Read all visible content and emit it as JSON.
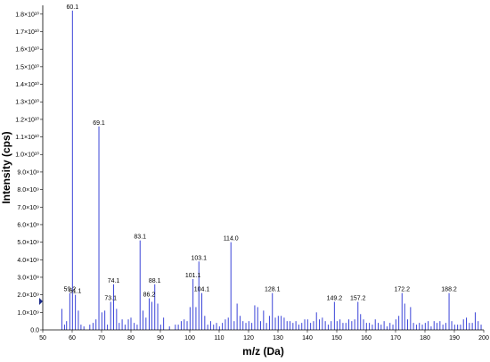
{
  "chart_data": {
    "type": "bar",
    "xlabel": "m/z (Da)",
    "ylabel": "Intensity (cps)",
    "xlim": [
      50,
      200
    ],
    "ylim": [
      0,
      18500000000.0
    ],
    "grid": false,
    "peak_color": "#3a44d8",
    "marker_color": "#1a2a8a",
    "x_ticks": [
      {
        "value": 50,
        "label": "50"
      },
      {
        "value": 60,
        "label": "60"
      },
      {
        "value": 70,
        "label": "70"
      },
      {
        "value": 80,
        "label": "80"
      },
      {
        "value": 90,
        "label": "90"
      },
      {
        "value": 100,
        "label": "100"
      },
      {
        "value": 110,
        "label": "110"
      },
      {
        "value": 120,
        "label": "120"
      },
      {
        "value": 130,
        "label": "130"
      },
      {
        "value": 140,
        "label": "140"
      },
      {
        "value": 150,
        "label": "150"
      },
      {
        "value": 160,
        "label": "160"
      },
      {
        "value": 170,
        "label": "170"
      },
      {
        "value": 180,
        "label": "180"
      },
      {
        "value": 190,
        "label": "190"
      },
      {
        "value": 200,
        "label": "200"
      }
    ],
    "y_ticks": [
      {
        "value": 0,
        "label": "0.0"
      },
      {
        "value": 1000000000.0,
        "label": "1.0×10⁹"
      },
      {
        "value": 2000000000.0,
        "label": "2.0×10⁹"
      },
      {
        "value": 3000000000.0,
        "label": "3.0×10⁹"
      },
      {
        "value": 4000000000.0,
        "label": "4.0×10⁹"
      },
      {
        "value": 5000000000.0,
        "label": "5.0×10⁹"
      },
      {
        "value": 6000000000.0,
        "label": "6.0×10⁹"
      },
      {
        "value": 7000000000.0,
        "label": "7.0×10⁹"
      },
      {
        "value": 8000000000.0,
        "label": "8.0×10⁹"
      },
      {
        "value": 9000000000.0,
        "label": "9.0×10⁹"
      },
      {
        "value": 10000000000.0,
        "label": "1.0×10¹⁰"
      },
      {
        "value": 11000000000.0,
        "label": "1.1×10¹⁰"
      },
      {
        "value": 12000000000.0,
        "label": "1.2×10¹⁰"
      },
      {
        "value": 13000000000.0,
        "label": "1.3×10¹⁰"
      },
      {
        "value": 14000000000.0,
        "label": "1.4×10¹⁰"
      },
      {
        "value": 15000000000.0,
        "label": "1.5×10¹⁰"
      },
      {
        "value": 16000000000.0,
        "label": "1.6×10¹⁰"
      },
      {
        "value": 17000000000.0,
        "label": "1.7×10¹⁰"
      },
      {
        "value": 18000000000.0,
        "label": "1.8×10¹⁰"
      }
    ],
    "labeled_peaks": [
      {
        "mz": 59.2,
        "intensity": 2100000000.0,
        "label": "59.2"
      },
      {
        "mz": 60.1,
        "intensity": 18200000000.0,
        "label": "60.1"
      },
      {
        "mz": 61.1,
        "intensity": 2000000000.0,
        "label": "61.1"
      },
      {
        "mz": 69.1,
        "intensity": 11600000000.0,
        "label": "69.1"
      },
      {
        "mz": 73.1,
        "intensity": 1600000000.0,
        "label": "73.1"
      },
      {
        "mz": 74.1,
        "intensity": 2600000000.0,
        "label": "74.1"
      },
      {
        "mz": 83.1,
        "intensity": 5100000000.0,
        "label": "83.1"
      },
      {
        "mz": 86.2,
        "intensity": 1800000000.0,
        "label": "86.2"
      },
      {
        "mz": 88.1,
        "intensity": 2600000000.0,
        "label": "88.1"
      },
      {
        "mz": 101.1,
        "intensity": 2900000000.0,
        "label": "101.1"
      },
      {
        "mz": 103.1,
        "intensity": 3900000000.0,
        "label": "103.1"
      },
      {
        "mz": 104.1,
        "intensity": 2100000000.0,
        "label": "104.1"
      },
      {
        "mz": 114.0,
        "intensity": 5000000000.0,
        "label": "114.0"
      },
      {
        "mz": 128.1,
        "intensity": 2100000000.0,
        "label": "128.1"
      },
      {
        "mz": 149.2,
        "intensity": 1600000000.0,
        "label": "149.2"
      },
      {
        "mz": 157.2,
        "intensity": 1600000000.0,
        "label": "157.2"
      },
      {
        "mz": 172.2,
        "intensity": 2100000000.0,
        "label": "172.2"
      },
      {
        "mz": 188.2,
        "intensity": 2100000000.0,
        "label": "188.2"
      }
    ],
    "minor_peaks": [
      {
        "mz": 56.5,
        "intensity": 1200000000.0
      },
      {
        "mz": 57.4,
        "intensity": 300000000.0
      },
      {
        "mz": 58.1,
        "intensity": 500000000.0
      },
      {
        "mz": 62.1,
        "intensity": 1100000000.0
      },
      {
        "mz": 63.0,
        "intensity": 300000000.0
      },
      {
        "mz": 64.0,
        "intensity": 200000000.0
      },
      {
        "mz": 66.0,
        "intensity": 300000000.0
      },
      {
        "mz": 67.1,
        "intensity": 400000000.0
      },
      {
        "mz": 68.1,
        "intensity": 600000000.0
      },
      {
        "mz": 70.1,
        "intensity": 1000000000.0
      },
      {
        "mz": 71.1,
        "intensity": 1100000000.0
      },
      {
        "mz": 72.0,
        "intensity": 300000000.0
      },
      {
        "mz": 75.1,
        "intensity": 1200000000.0
      },
      {
        "mz": 76.0,
        "intensity": 400000000.0
      },
      {
        "mz": 77.0,
        "intensity": 600000000.0
      },
      {
        "mz": 78.0,
        "intensity": 300000000.0
      },
      {
        "mz": 79.1,
        "intensity": 600000000.0
      },
      {
        "mz": 80.0,
        "intensity": 700000000.0
      },
      {
        "mz": 81.1,
        "intensity": 400000000.0
      },
      {
        "mz": 82.1,
        "intensity": 300000000.0
      },
      {
        "mz": 84.1,
        "intensity": 1100000000.0
      },
      {
        "mz": 85.1,
        "intensity": 700000000.0
      },
      {
        "mz": 87.1,
        "intensity": 1600000000.0
      },
      {
        "mz": 89.1,
        "intensity": 1500000000.0
      },
      {
        "mz": 90.1,
        "intensity": 300000000.0
      },
      {
        "mz": 91.1,
        "intensity": 700000000.0
      },
      {
        "mz": 93.1,
        "intensity": 200000000.0
      },
      {
        "mz": 95.1,
        "intensity": 300000000.0
      },
      {
        "mz": 96.1,
        "intensity": 300000000.0
      },
      {
        "mz": 97.1,
        "intensity": 500000000.0
      },
      {
        "mz": 98.1,
        "intensity": 600000000.0
      },
      {
        "mz": 99.1,
        "intensity": 500000000.0
      },
      {
        "mz": 100.1,
        "intensity": 1300000000.0
      },
      {
        "mz": 102.1,
        "intensity": 1300000000.0
      },
      {
        "mz": 105.1,
        "intensity": 800000000.0
      },
      {
        "mz": 106.1,
        "intensity": 300000000.0
      },
      {
        "mz": 107.1,
        "intensity": 500000000.0
      },
      {
        "mz": 108.1,
        "intensity": 300000000.0
      },
      {
        "mz": 109.1,
        "intensity": 400000000.0
      },
      {
        "mz": 110.1,
        "intensity": 200000000.0
      },
      {
        "mz": 111.1,
        "intensity": 400000000.0
      },
      {
        "mz": 112.1,
        "intensity": 600000000.0
      },
      {
        "mz": 113.1,
        "intensity": 700000000.0
      },
      {
        "mz": 115.1,
        "intensity": 500000000.0
      },
      {
        "mz": 116.1,
        "intensity": 1500000000.0
      },
      {
        "mz": 117.1,
        "intensity": 800000000.0
      },
      {
        "mz": 118.1,
        "intensity": 500000000.0
      },
      {
        "mz": 119.1,
        "intensity": 400000000.0
      },
      {
        "mz": 120.1,
        "intensity": 500000000.0
      },
      {
        "mz": 121.1,
        "intensity": 400000000.0
      },
      {
        "mz": 122.1,
        "intensity": 1400000000.0
      },
      {
        "mz": 123.1,
        "intensity": 1300000000.0
      },
      {
        "mz": 124.1,
        "intensity": 500000000.0
      },
      {
        "mz": 125.1,
        "intensity": 1100000000.0
      },
      {
        "mz": 126.1,
        "intensity": 400000000.0
      },
      {
        "mz": 127.1,
        "intensity": 800000000.0
      },
      {
        "mz": 129.1,
        "intensity": 700000000.0
      },
      {
        "mz": 130.1,
        "intensity": 800000000.0
      },
      {
        "mz": 131.1,
        "intensity": 800000000.0
      },
      {
        "mz": 132.1,
        "intensity": 700000000.0
      },
      {
        "mz": 133.1,
        "intensity": 500000000.0
      },
      {
        "mz": 134.1,
        "intensity": 500000000.0
      },
      {
        "mz": 135.1,
        "intensity": 400000000.0
      },
      {
        "mz": 136.1,
        "intensity": 500000000.0
      },
      {
        "mz": 137.1,
        "intensity": 300000000.0
      },
      {
        "mz": 138.1,
        "intensity": 400000000.0
      },
      {
        "mz": 139.1,
        "intensity": 600000000.0
      },
      {
        "mz": 140.1,
        "intensity": 600000000.0
      },
      {
        "mz": 141.1,
        "intensity": 400000000.0
      },
      {
        "mz": 142.1,
        "intensity": 500000000.0
      },
      {
        "mz": 143.1,
        "intensity": 1000000000.0
      },
      {
        "mz": 144.1,
        "intensity": 600000000.0
      },
      {
        "mz": 145.1,
        "intensity": 700000000.0
      },
      {
        "mz": 146.1,
        "intensity": 500000000.0
      },
      {
        "mz": 147.1,
        "intensity": 300000000.0
      },
      {
        "mz": 148.1,
        "intensity": 500000000.0
      },
      {
        "mz": 150.1,
        "intensity": 500000000.0
      },
      {
        "mz": 151.1,
        "intensity": 600000000.0
      },
      {
        "mz": 152.1,
        "intensity": 400000000.0
      },
      {
        "mz": 153.1,
        "intensity": 400000000.0
      },
      {
        "mz": 154.1,
        "intensity": 600000000.0
      },
      {
        "mz": 155.1,
        "intensity": 500000000.0
      },
      {
        "mz": 156.1,
        "intensity": 600000000.0
      },
      {
        "mz": 158.1,
        "intensity": 900000000.0
      },
      {
        "mz": 159.1,
        "intensity": 600000000.0
      },
      {
        "mz": 160.1,
        "intensity": 400000000.0
      },
      {
        "mz": 161.1,
        "intensity": 400000000.0
      },
      {
        "mz": 162.1,
        "intensity": 300000000.0
      },
      {
        "mz": 163.1,
        "intensity": 600000000.0
      },
      {
        "mz": 164.1,
        "intensity": 400000000.0
      },
      {
        "mz": 165.1,
        "intensity": 300000000.0
      },
      {
        "mz": 166.1,
        "intensity": 500000000.0
      },
      {
        "mz": 167.1,
        "intensity": 200000000.0
      },
      {
        "mz": 168.1,
        "intensity": 400000000.0
      },
      {
        "mz": 169.1,
        "intensity": 300000000.0
      },
      {
        "mz": 170.1,
        "intensity": 600000000.0
      },
      {
        "mz": 171.1,
        "intensity": 800000000.0
      },
      {
        "mz": 173.1,
        "intensity": 1500000000.0
      },
      {
        "mz": 174.1,
        "intensity": 600000000.0
      },
      {
        "mz": 175.1,
        "intensity": 1300000000.0
      },
      {
        "mz": 176.1,
        "intensity": 400000000.0
      },
      {
        "mz": 177.1,
        "intensity": 300000000.0
      },
      {
        "mz": 178.1,
        "intensity": 400000000.0
      },
      {
        "mz": 179.1,
        "intensity": 300000000.0
      },
      {
        "mz": 180.1,
        "intensity": 400000000.0
      },
      {
        "mz": 181.1,
        "intensity": 500000000.0
      },
      {
        "mz": 182.1,
        "intensity": 200000000.0
      },
      {
        "mz": 183.1,
        "intensity": 500000000.0
      },
      {
        "mz": 184.1,
        "intensity": 400000000.0
      },
      {
        "mz": 185.1,
        "intensity": 500000000.0
      },
      {
        "mz": 186.1,
        "intensity": 300000000.0
      },
      {
        "mz": 187.1,
        "intensity": 400000000.0
      },
      {
        "mz": 189.1,
        "intensity": 500000000.0
      },
      {
        "mz": 190.1,
        "intensity": 300000000.0
      },
      {
        "mz": 191.1,
        "intensity": 300000000.0
      },
      {
        "mz": 192.1,
        "intensity": 300000000.0
      },
      {
        "mz": 193.1,
        "intensity": 600000000.0
      },
      {
        "mz": 194.1,
        "intensity": 700000000.0
      },
      {
        "mz": 195.1,
        "intensity": 400000000.0
      },
      {
        "mz": 196.1,
        "intensity": 400000000.0
      },
      {
        "mz": 197.1,
        "intensity": 1000000000.0
      },
      {
        "mz": 198.1,
        "intensity": 500000000.0
      },
      {
        "mz": 199.1,
        "intensity": 300000000.0
      }
    ]
  }
}
